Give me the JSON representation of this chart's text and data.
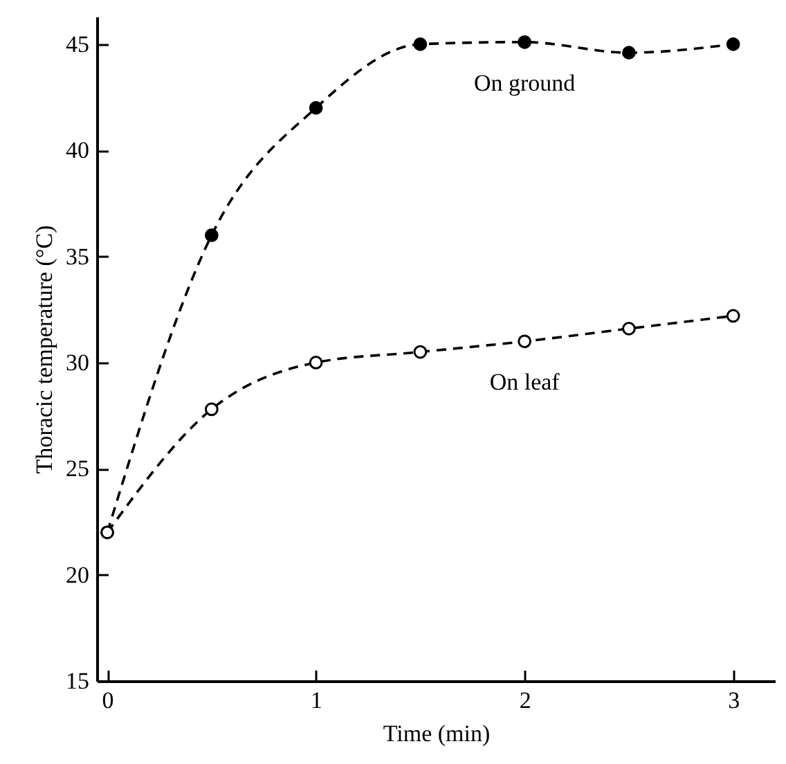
{
  "chart_data": {
    "type": "line",
    "xlabel": "Time (min)",
    "ylabel": "Thoracic temperature (°C)",
    "x": [
      0,
      0.5,
      1,
      1.5,
      2,
      2.5,
      3
    ],
    "series": [
      {
        "name": "On ground",
        "color": "#000000",
        "values": [
          22,
          36,
          42,
          45,
          45.1,
          44.6,
          45
        ]
      },
      {
        "name": "On leaf",
        "color": "#000000",
        "values": [
          22,
          27.8,
          30,
          30.5,
          31,
          31.6,
          32.2
        ]
      }
    ],
    "xlim": [
      -0.05,
      3.2
    ],
    "xticks": [
      0,
      1,
      2,
      3
    ],
    "ylim": [
      15,
      46.3
    ],
    "yticks": [
      15,
      20,
      25,
      30,
      35,
      40,
      45
    ],
    "marker": "circle",
    "line_style": "dashed",
    "grid": false
  }
}
